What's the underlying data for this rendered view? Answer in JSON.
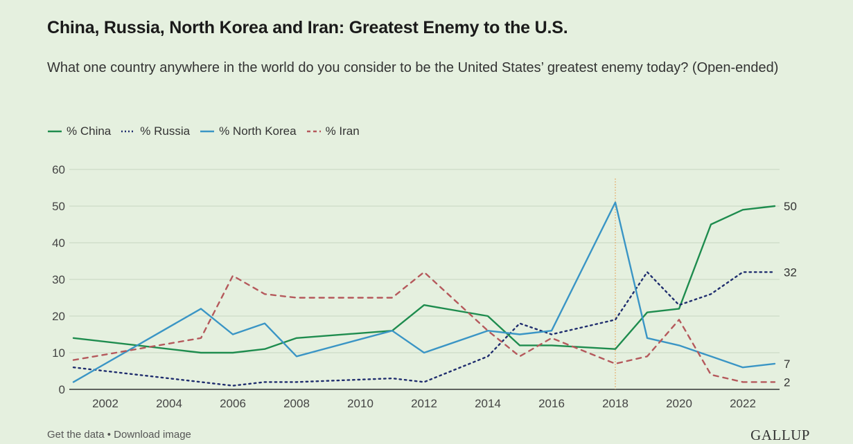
{
  "title": "China, Russia, North Korea and Iran: Greatest Enemy to the U.S.",
  "subtitle": "What one country anywhere in the world do you consider to be the United States’ greatest enemy today? (Open-ended)",
  "footer": {
    "get_data": "Get the data",
    "separator": " • ",
    "download": "Download image"
  },
  "brand": "GALLUP",
  "chart_data": {
    "type": "line",
    "title": "China, Russia, North Korea and Iran: Greatest Enemy to the U.S.",
    "xlabel": "",
    "ylabel": "",
    "ylim": [
      0,
      60
    ],
    "xlim": [
      2001,
      2023
    ],
    "y_ticks": [
      0,
      10,
      20,
      30,
      40,
      50,
      60
    ],
    "x_ticks": [
      2002,
      2004,
      2006,
      2008,
      2010,
      2012,
      2014,
      2016,
      2018,
      2020,
      2022
    ],
    "grid": true,
    "legend_position": "top-left",
    "reference_line_x": 2018,
    "series": [
      {
        "name": "% China",
        "color": "#1e8c4e",
        "dash": "solid",
        "end_label": "50",
        "points": [
          [
            2001,
            14
          ],
          [
            2005,
            10
          ],
          [
            2006,
            10
          ],
          [
            2007,
            11
          ],
          [
            2008,
            14
          ],
          [
            2011,
            16
          ],
          [
            2012,
            23
          ],
          [
            2014,
            20
          ],
          [
            2015,
            12
          ],
          [
            2016,
            12
          ],
          [
            2018,
            11
          ],
          [
            2019,
            21
          ],
          [
            2020,
            22
          ],
          [
            2021,
            45
          ],
          [
            2022,
            49
          ],
          [
            2023,
            50
          ]
        ]
      },
      {
        "name": "% Russia",
        "color": "#1f2d6e",
        "dash": "dotted",
        "end_label": "32",
        "points": [
          [
            2001,
            6
          ],
          [
            2005,
            2
          ],
          [
            2006,
            1
          ],
          [
            2007,
            2
          ],
          [
            2008,
            2
          ],
          [
            2011,
            3
          ],
          [
            2012,
            2
          ],
          [
            2014,
            9
          ],
          [
            2015,
            18
          ],
          [
            2016,
            15
          ],
          [
            2018,
            19
          ],
          [
            2019,
            32
          ],
          [
            2020,
            23
          ],
          [
            2021,
            26
          ],
          [
            2022,
            32
          ],
          [
            2023,
            32
          ]
        ]
      },
      {
        "name": "% North Korea",
        "color": "#3a95c5",
        "dash": "solid",
        "end_label": "7",
        "points": [
          [
            2001,
            2
          ],
          [
            2005,
            22
          ],
          [
            2006,
            15
          ],
          [
            2007,
            18
          ],
          [
            2008,
            9
          ],
          [
            2011,
            16
          ],
          [
            2012,
            10
          ],
          [
            2014,
            16
          ],
          [
            2015,
            15
          ],
          [
            2016,
            16
          ],
          [
            2018,
            51
          ],
          [
            2019,
            14
          ],
          [
            2020,
            12
          ],
          [
            2021,
            9
          ],
          [
            2022,
            6
          ],
          [
            2023,
            7
          ]
        ]
      },
      {
        "name": "% Iran",
        "color": "#b5595c",
        "dash": "dashed",
        "end_label": "2",
        "points": [
          [
            2001,
            8
          ],
          [
            2005,
            14
          ],
          [
            2006,
            31
          ],
          [
            2007,
            26
          ],
          [
            2008,
            25
          ],
          [
            2011,
            25
          ],
          [
            2012,
            32
          ],
          [
            2014,
            16
          ],
          [
            2015,
            9
          ],
          [
            2016,
            14
          ],
          [
            2018,
            7
          ],
          [
            2019,
            9
          ],
          [
            2020,
            19
          ],
          [
            2021,
            4
          ],
          [
            2022,
            2
          ],
          [
            2023,
            2
          ]
        ]
      }
    ]
  }
}
